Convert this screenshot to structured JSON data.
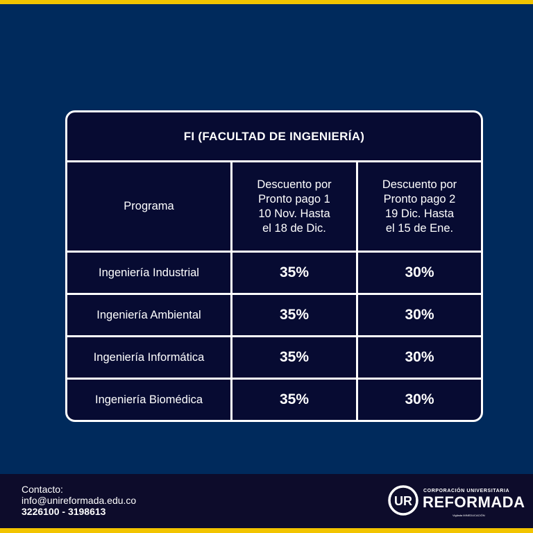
{
  "colors": {
    "background": "#002a5c",
    "accent": "#f2c400",
    "table_bg": "#070b32",
    "footer_bg": "#0d0c2b"
  },
  "table": {
    "title": "FI (FACULTAD DE INGENIERÍA)",
    "headers": {
      "programa": "Programa",
      "descuento1": [
        "Descuento por",
        "Pronto pago 1",
        "10 Nov. Hasta",
        "el 18 de Dic."
      ],
      "descuento2": [
        "Descuento por",
        "Pronto pago 2",
        "19 Dic. Hasta",
        "el 15 de Ene."
      ]
    },
    "rows": [
      {
        "programa": "Ingeniería Industrial",
        "d1": "35%",
        "d2": "30%"
      },
      {
        "programa": "Ingeniería Ambiental",
        "d1": "35%",
        "d2": "30%"
      },
      {
        "programa": "Ingeniería Informática",
        "d1": "35%",
        "d2": "30%"
      },
      {
        "programa": "Ingeniería Biomédica",
        "d1": "35%",
        "d2": "30%"
      }
    ]
  },
  "footer": {
    "contact_label": "Contacto:",
    "email": "info@unireformada.edu.co",
    "phones": "3226100 - 3198613",
    "logo": {
      "monogram": "UR",
      "top_text": "CORPORACIÓN UNIVERSITARIA",
      "main_text": "REFORMADA",
      "sub_text": "Vigilada MINEDUCACIÓN"
    }
  }
}
